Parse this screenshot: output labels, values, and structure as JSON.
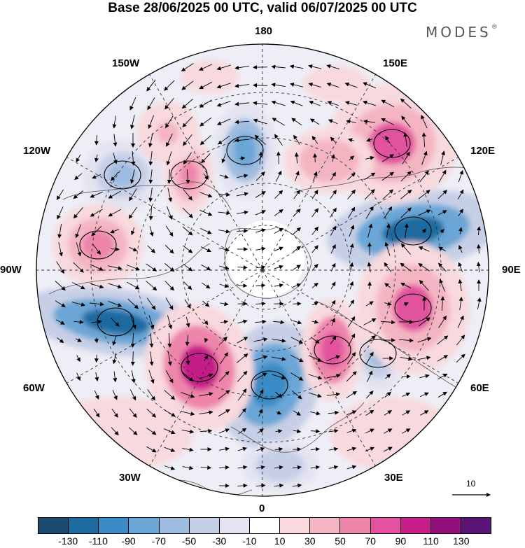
{
  "title": "Base 28/06/2025 00 UTC, valid 06/07/2025 00 UTC",
  "brand": "MODES",
  "brand_mark": "®",
  "longitude_labels": {
    "n180": "180",
    "w150": "150W",
    "e150": "150E",
    "w120": "120W",
    "e120": "120E",
    "w90": "90W",
    "e90": "90E",
    "w60": "60W",
    "e60": "60E",
    "w30": "30W",
    "e30": "30E",
    "n0": "0"
  },
  "reference_vector": {
    "label": "10"
  },
  "colorbar": {
    "colors": [
      "#1c4a6e",
      "#1f6aa0",
      "#3a8bc4",
      "#6aa6d6",
      "#9dbce0",
      "#c6cfe6",
      "#e3e3f1",
      "#ffffff",
      "#f8d9dd",
      "#f4b5c2",
      "#ee85ab",
      "#e2529e",
      "#c61f8a",
      "#92107b",
      "#5a1476"
    ],
    "labels": [
      "-130",
      "-110",
      "-90",
      "-70",
      "-50",
      "-30",
      "-10",
      "10",
      "30",
      "50",
      "70",
      "90",
      "110",
      "130"
    ]
  }
}
